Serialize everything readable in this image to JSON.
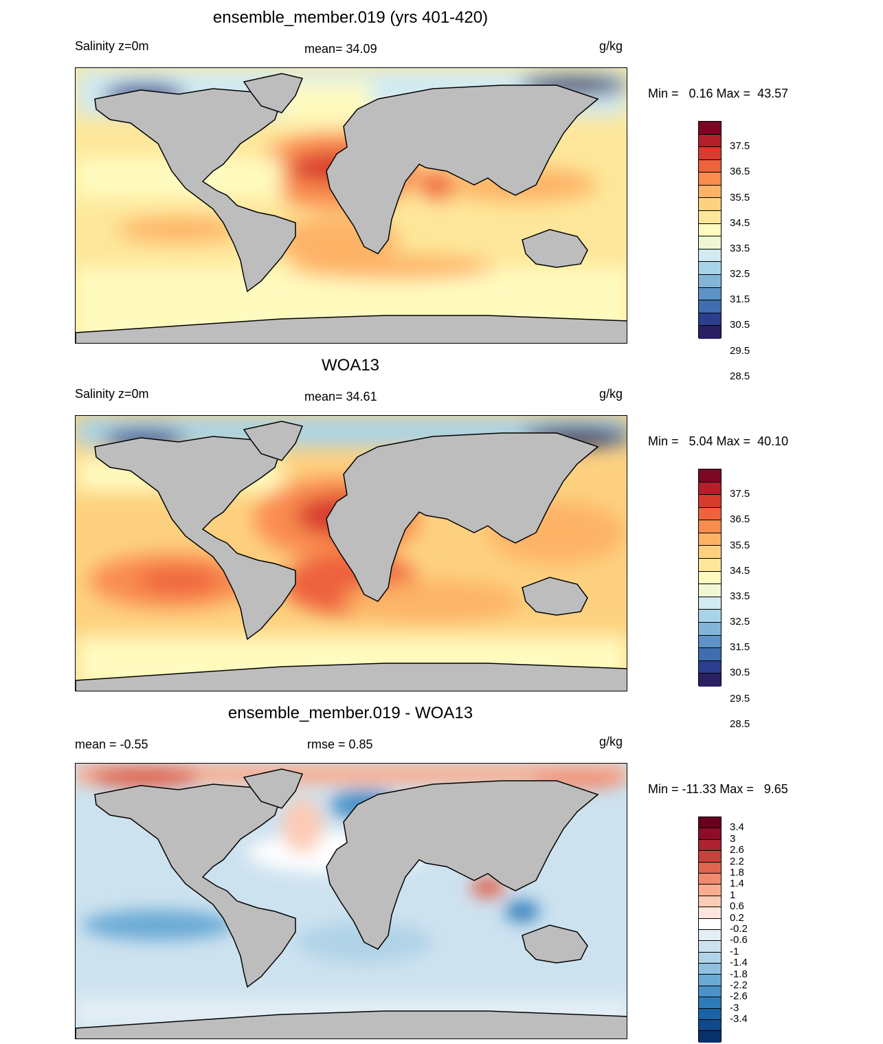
{
  "panels": [
    {
      "title": "ensemble_member.019 (yrs 401-420)",
      "left_label": "Salinity z=0m",
      "center_label": "mean=  34.09",
      "units": "g/kg",
      "minmax": "Min =   0.16 Max =  43.57",
      "colorbar": {
        "colors": [
          "#2a1f63",
          "#2c3f8f",
          "#3f6db0",
          "#5d93c5",
          "#84b5d8",
          "#a9d3e7",
          "#d2ebf2",
          "#eef7d2",
          "#fffbbf",
          "#fee79a",
          "#fdd17f",
          "#fdb366",
          "#f98c4f",
          "#ee623c",
          "#d83a2e",
          "#b31f2a",
          "#7c0725"
        ],
        "tick_labels": [
          "37.5",
          "36.5",
          "35.5",
          "34.5",
          "33.5",
          "32.5",
          "31.5",
          "30.5",
          "29.5",
          "28.5"
        ]
      }
    },
    {
      "title": "WOA13",
      "left_label": "Salinity z=0m",
      "center_label": "mean=  34.61",
      "units": "g/kg",
      "minmax": "Min =   5.04 Max =  40.10",
      "colorbar": {
        "colors": [
          "#2a1f63",
          "#2c3f8f",
          "#3f6db0",
          "#5d93c5",
          "#84b5d8",
          "#a9d3e7",
          "#d2ebf2",
          "#eef7d2",
          "#fffbbf",
          "#fee79a",
          "#fdd17f",
          "#fdb366",
          "#f98c4f",
          "#ee623c",
          "#d83a2e",
          "#b31f2a",
          "#7c0725"
        ],
        "tick_labels": [
          "37.5",
          "36.5",
          "35.5",
          "34.5",
          "33.5",
          "32.5",
          "31.5",
          "30.5",
          "29.5",
          "28.5"
        ]
      }
    },
    {
      "title": "ensemble_member.019 - WOA13",
      "left_label": "mean =  -0.55",
      "center_label": "rmse =   0.85",
      "units": "g/kg",
      "minmax": "Min = -11.33 Max =   9.65",
      "colorbar": {
        "colors": [
          "#08306b",
          "#0f4a8c",
          "#1c62a6",
          "#2f7bb9",
          "#4a93c8",
          "#6baad5",
          "#8fc0df",
          "#b0d3e8",
          "#cde2ef",
          "#e3eef5",
          "#ffffff",
          "#fde7dc",
          "#fccbb5",
          "#f9ad90",
          "#f08a6e",
          "#e0654f",
          "#c9433d",
          "#ae2231",
          "#8e0d26",
          "#67001f"
        ],
        "tick_labels": [
          "3.4",
          "3",
          "2.6",
          "2.2",
          "1.8",
          "1.4",
          "1",
          "0.6",
          "0.2",
          "-0.2",
          "-0.6",
          "-1",
          "-1.4",
          "-1.8",
          "-2.2",
          "-2.6",
          "-3",
          "-3.4"
        ]
      }
    }
  ]
}
